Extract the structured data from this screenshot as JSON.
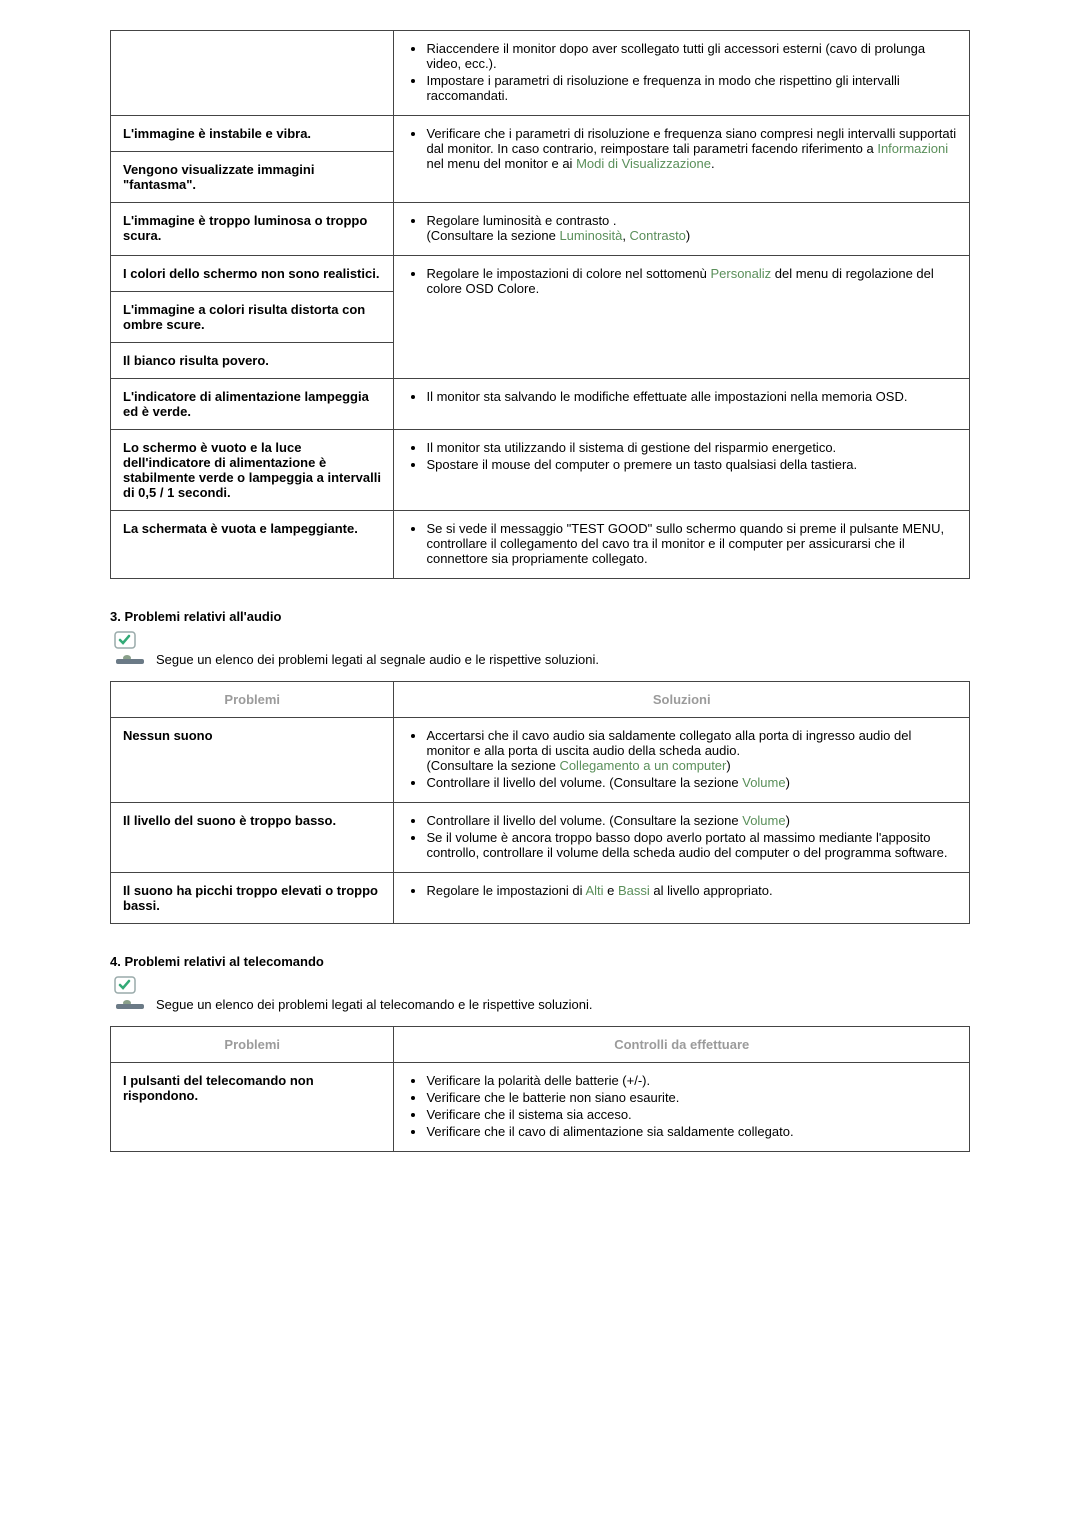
{
  "colors": {
    "link": "#5a8f5a",
    "header_text": "#9b9b9b",
    "border": "#444444",
    "text": "#000000",
    "background": "#ffffff"
  },
  "table1": {
    "rows": [
      {
        "problem": "",
        "solution_parts": [
          {
            "t": "li",
            "v": "Riaccendere il monitor dopo aver scollegato tutti gli accessori esterni (cavo di prolunga video, ecc.)."
          },
          {
            "t": "li",
            "v": "Impostare i parametri di risoluzione e frequenza in modo che rispettino gli intervalli raccomandati."
          }
        ]
      },
      {
        "problem": "L'immagine è instabile e vibra.",
        "rowspan_solution": 2,
        "solution_parts": [
          {
            "t": "li",
            "v": "Verificare che i parametri di risoluzione e frequenza siano compresi negli intervalli supportati dal monitor. In caso contrario, reimpostare tali parametri facendo riferimento a "
          },
          {
            "t": "link",
            "v": "Informazioni"
          },
          {
            "t": "text",
            "v": " nel menu del monitor e ai "
          },
          {
            "t": "link",
            "v": "Modi di Visualizzazione"
          },
          {
            "t": "text",
            "v": "."
          }
        ]
      },
      {
        "problem": "Vengono visualizzate immagini \"fantasma\"."
      },
      {
        "problem": "L'immagine è troppo luminosa o troppo scura.",
        "solution_parts": [
          {
            "t": "li",
            "v": "Regolare luminosità e contrasto ."
          },
          {
            "t": "br"
          },
          {
            "t": "text",
            "v": "(Consultare la sezione "
          },
          {
            "t": "link",
            "v": "Luminosità"
          },
          {
            "t": "text",
            "v": ", "
          },
          {
            "t": "link",
            "v": "Contrasto"
          },
          {
            "t": "text",
            "v": ")"
          }
        ]
      },
      {
        "problem": "I colori dello schermo non sono realistici.",
        "rowspan_solution": 3,
        "solution_parts": [
          {
            "t": "li",
            "v": "Regolare le impostazioni di colore nel sottomenù "
          },
          {
            "t": "link",
            "v": "Personaliz"
          },
          {
            "t": "text",
            "v": " del menu di regolazione del colore OSD Colore."
          }
        ]
      },
      {
        "problem": "L'immagine a colori risulta distorta con ombre scure."
      },
      {
        "problem": "Il bianco risulta povero."
      },
      {
        "problem": "L'indicatore di alimentazione lampeggia ed è verde.",
        "solution_parts": [
          {
            "t": "li",
            "v": "Il monitor sta salvando le modifiche effettuate alle impostazioni nella memoria OSD."
          }
        ]
      },
      {
        "problem": "Lo schermo è vuoto e la luce dell'indicatore di alimentazione è stabilmente verde o lampeggia a intervalli di 0,5 / 1 secondi.",
        "solution_parts": [
          {
            "t": "li",
            "v": "Il monitor sta utilizzando il sistema di gestione del risparmio energetico."
          },
          {
            "t": "li2",
            "v": "Spostare il mouse del computer o premere un tasto qualsiasi della tastiera."
          }
        ]
      },
      {
        "problem": "La schermata è vuota e lampeggiante.",
        "solution_parts": [
          {
            "t": "li",
            "v": "Se si vede il messaggio \"TEST GOOD\" sullo schermo quando si preme il pulsante MENU, controllare il collegamento del cavo tra il monitor e il computer per assicurarsi che il connettore sia propriamente collegato."
          }
        ]
      }
    ]
  },
  "section3": {
    "title": "3. Problemi relativi all'audio",
    "intro": "Segue un elenco dei problemi legati al segnale audio e le rispettive soluzioni.",
    "header_problem": "Problemi",
    "header_solution": "Soluzioni",
    "rows": [
      {
        "problem": "Nessun suono",
        "solution_parts": [
          {
            "t": "li",
            "v": "Accertarsi che il cavo audio sia saldamente collegato alla porta di ingresso audio del monitor e alla porta di uscita audio della scheda audio."
          },
          {
            "t": "br"
          },
          {
            "t": "text",
            "v": "(Consultare la sezione "
          },
          {
            "t": "link",
            "v": "Collegamento a un computer"
          },
          {
            "t": "text",
            "v": ")"
          },
          {
            "t": "li2",
            "v": "Controllare il livello del volume. (Consultare la sezione "
          },
          {
            "t": "link",
            "v": "Volume"
          },
          {
            "t": "text",
            "v": ")"
          }
        ]
      },
      {
        "problem": "Il livello del suono è troppo basso.",
        "solution_parts": [
          {
            "t": "li",
            "v": "Controllare il livello del volume. (Consultare la sezione "
          },
          {
            "t": "link",
            "v": "Volume"
          },
          {
            "t": "text",
            "v": ")"
          },
          {
            "t": "li2",
            "v": "Se il volume è ancora troppo basso dopo averlo portato al massimo mediante l'apposito controllo, controllare il volume della scheda audio del computer o del programma software."
          }
        ]
      },
      {
        "problem": "Il suono ha picchi troppo elevati o troppo bassi.",
        "solution_parts": [
          {
            "t": "li",
            "v": "Regolare le impostazioni di "
          },
          {
            "t": "link",
            "v": "Alti"
          },
          {
            "t": "text",
            "v": " e "
          },
          {
            "t": "link",
            "v": "Bassi"
          },
          {
            "t": "text",
            "v": " al livello appropriato."
          }
        ]
      }
    ]
  },
  "section4": {
    "title": "4. Problemi relativi al telecomando",
    "intro": "Segue un elenco dei problemi legati al telecomando e le rispettive soluzioni.",
    "header_problem": "Problemi",
    "header_solution": "Controlli da effettuare",
    "rows": [
      {
        "problem": "I pulsanti del telecomando non rispondono.",
        "solution_parts": [
          {
            "t": "li",
            "v": "Verificare la polarità delle batterie (+/-)."
          },
          {
            "t": "li2",
            "v": "Verificare che le batterie non siano esaurite."
          },
          {
            "t": "li2",
            "v": "Verificare che il sistema sia acceso."
          },
          {
            "t": "li2",
            "v": "Verificare che il cavo di alimentazione sia saldamente collegato."
          }
        ]
      }
    ]
  }
}
